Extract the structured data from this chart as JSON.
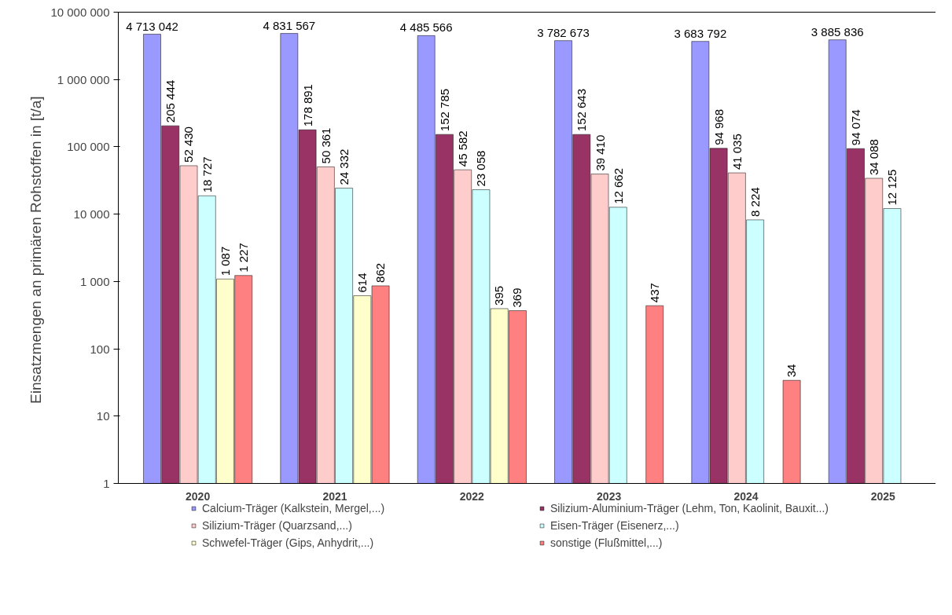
{
  "chart_data": {
    "type": "bar",
    "ylabel": "Einsatzmengen  an primären Rohstoffen in [t/a]",
    "categories": [
      "2020",
      "2021",
      "2022",
      "2023",
      "2024",
      "2025"
    ],
    "log": true,
    "ylim": [
      1,
      10000000
    ],
    "yticks": [
      {
        "value": 1,
        "label": "1"
      },
      {
        "value": 10,
        "label": "10"
      },
      {
        "value": 100,
        "label": "100"
      },
      {
        "value": 1000,
        "label": "1 000"
      },
      {
        "value": 10000,
        "label": "10 000"
      },
      {
        "value": 100000,
        "label": "100 000"
      },
      {
        "value": 1000000,
        "label": "1 000 000"
      },
      {
        "value": 10000000,
        "label": "10 000 000"
      }
    ],
    "grid": false,
    "legend": "bottom",
    "series": [
      {
        "name": "Calcium-Träger (Kalkstein, Mergel,...)",
        "color": "#9999ff",
        "values": [
          4713042,
          4831567,
          4485566,
          3782673,
          3683792,
          3885836
        ],
        "value_labels": [
          "4 713 042",
          "4 831 567",
          "4 485 566",
          "3 782 673",
          "3 683 792",
          "3 885 836"
        ]
      },
      {
        "name": "Silizium-Aluminium-Träger (Lehm, Ton, Kaolinit, Bauxit...)",
        "color": "#993366",
        "values": [
          205444,
          178891,
          152785,
          152643,
          94968,
          94074
        ],
        "value_labels": [
          "205 444",
          "178 891",
          "152 785",
          "152 643",
          "94 968",
          "94 074"
        ]
      },
      {
        "name": "Silizium-Träger (Quarzsand,...)",
        "color": "#ffcccc",
        "values": [
          52430,
          50361,
          45582,
          39410,
          41035,
          34088
        ],
        "value_labels": [
          "52 430",
          "50 361",
          "45 582",
          "39 410",
          "41 035",
          "34 088"
        ]
      },
      {
        "name": "Eisen-Träger (Eisenerz,...)",
        "color": "#ccffff",
        "values": [
          18727,
          24332,
          23058,
          12662,
          8224,
          12125
        ],
        "value_labels": [
          "18 727",
          "24 332",
          "23 058",
          "12 662",
          "8 224",
          "12 125"
        ]
      },
      {
        "name": "Schwefel-Träger (Gips, Anhydrit,...)",
        "color": "#ffffcc",
        "values": [
          1087,
          614,
          395,
          null,
          null,
          null
        ],
        "value_labels": [
          "1 087",
          "614",
          "395",
          null,
          null,
          null
        ]
      },
      {
        "name": "sonstige (Flußmittel,...)",
        "color": "#ff8080",
        "values": [
          1227,
          862,
          369,
          437,
          34,
          null
        ],
        "value_labels": [
          "1 227",
          "862",
          "369",
          "437",
          "34",
          null
        ]
      }
    ]
  }
}
